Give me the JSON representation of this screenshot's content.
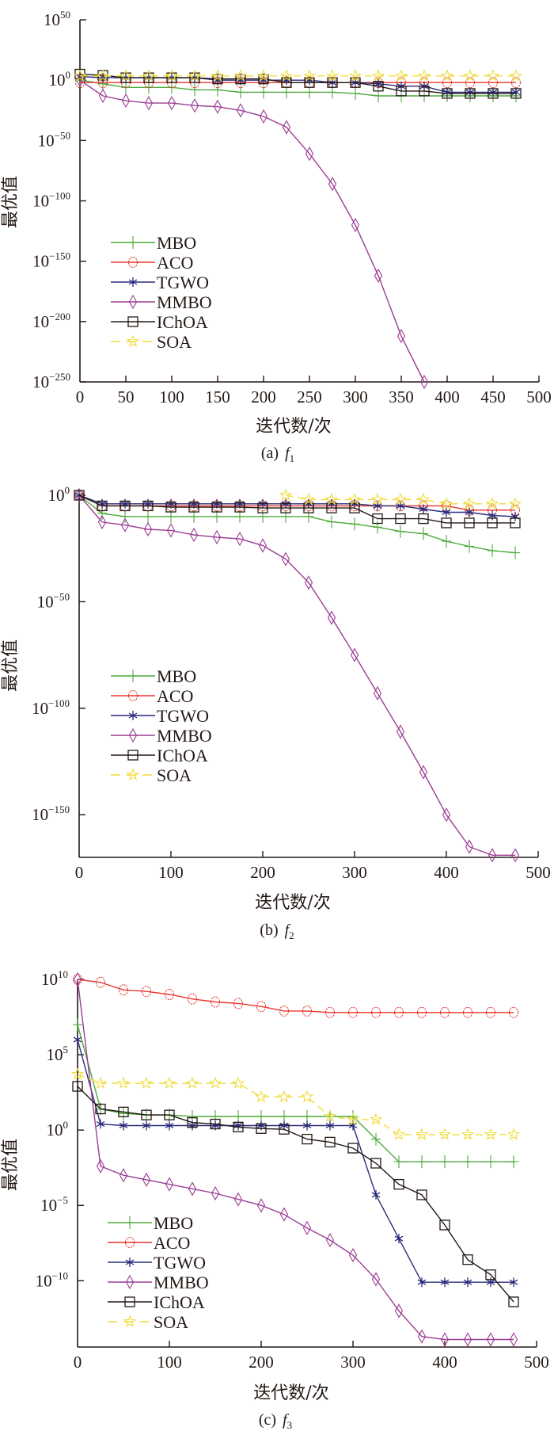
{
  "figure": {
    "series_styles": [
      {
        "name": "MBO",
        "color": "#4daa3a",
        "marker": "plus",
        "dash": "solid"
      },
      {
        "name": "ACO",
        "color": "#e8362e",
        "marker": "circle",
        "dash": "solid"
      },
      {
        "name": "TGWO",
        "color": "#2c2d7c",
        "marker": "star6",
        "dash": "solid"
      },
      {
        "name": "MMBO",
        "color": "#9b3d94",
        "marker": "diamond",
        "dash": "solid"
      },
      {
        "name": "IChOA",
        "color": "#231815",
        "marker": "square",
        "dash": "solid"
      },
      {
        "name": "SOA",
        "color": "#f0dc3c",
        "marker": "pentagram",
        "dash": "dashed"
      }
    ]
  },
  "chart_data": [
    {
      "type": "line",
      "panel": "a",
      "caption_prefix": "(a)",
      "caption_func": "f",
      "caption_sub": "1",
      "xlabel": "迭代数/次",
      "ylabel": "最优值",
      "yscale": "log",
      "xlim": [
        0,
        500
      ],
      "ylim_log10": [
        -250,
        50
      ],
      "xticks": [
        0,
        50,
        100,
        150,
        200,
        250,
        300,
        350,
        400,
        450,
        500
      ],
      "yticks_log10": [
        50,
        0,
        -50,
        -100,
        -150,
        -200,
        -250
      ],
      "legend_position": "lower-left",
      "x": [
        0,
        25,
        50,
        75,
        100,
        125,
        150,
        175,
        200,
        225,
        250,
        275,
        300,
        325,
        350,
        375,
        400,
        425,
        450,
        475
      ],
      "series_log10": [
        {
          "name": "MBO",
          "values": [
            0,
            -3,
            -6,
            -6,
            -6,
            -8,
            -8,
            -10,
            -10,
            -10,
            -10,
            -10,
            -11,
            -13,
            -13,
            -13,
            -13,
            -13,
            -13,
            -13
          ]
        },
        {
          "name": "ACO",
          "values": [
            -2,
            -2,
            -2,
            -2,
            -2,
            -2,
            -2,
            -2,
            -2,
            -2,
            -2,
            -2,
            -2,
            -2,
            -2,
            -2,
            -2,
            -2,
            -2,
            -2
          ]
        },
        {
          "name": "TGWO",
          "values": [
            3,
            2,
            2,
            2,
            2,
            2,
            0,
            0,
            0,
            0,
            0,
            -2,
            -2,
            -3,
            -5,
            -5,
            -10,
            -10,
            -10,
            -10
          ]
        },
        {
          "name": "MMBO",
          "values": [
            0,
            -13,
            -17,
            -19,
            -19,
            -21,
            -22,
            -25,
            -30,
            -39,
            -61,
            -86,
            -120,
            -162,
            -212,
            -250
          ]
        },
        {
          "name": "IChOA",
          "values": [
            5,
            4,
            2,
            2,
            2,
            2,
            1,
            1,
            1,
            -2,
            -2,
            -2,
            -2,
            -5,
            -9,
            -9,
            -11,
            -11,
            -11,
            -11
          ]
        },
        {
          "name": "SOA",
          "values": [
            3.5,
            3.5,
            3.5,
            3.5,
            3.5,
            3.5,
            3.5,
            3.5,
            3.5,
            3.5,
            3.5,
            3.5,
            3.5,
            3.5,
            3.5,
            3.5,
            3.5,
            3.5,
            3.5,
            3.5
          ]
        }
      ]
    },
    {
      "type": "line",
      "panel": "b",
      "caption_prefix": "(b)",
      "caption_func": "f",
      "caption_sub": "2",
      "xlabel": "迭代数/次",
      "ylabel": "最优值",
      "yscale": "log",
      "xlim": [
        0,
        500
      ],
      "ylim_log10": [
        -170,
        0
      ],
      "xticks": [
        0,
        100,
        200,
        300,
        400,
        500
      ],
      "yticks_log10": [
        0,
        -50,
        -100,
        -150
      ],
      "legend_position": "lower-left",
      "x": [
        0,
        25,
        50,
        75,
        100,
        125,
        150,
        175,
        200,
        225,
        250,
        275,
        300,
        325,
        350,
        375,
        400,
        425,
        450,
        475
      ],
      "series_log10": [
        {
          "name": "MBO",
          "values": [
            0,
            -8.5,
            -10,
            -10,
            -10,
            -10,
            -10,
            -10,
            -10,
            -10,
            -10,
            -12.5,
            -13.5,
            -15,
            -17,
            -18,
            -21.6,
            -24,
            -26,
            -27
          ]
        },
        {
          "name": "ACO",
          "values": [
            0,
            -5,
            -5,
            -5,
            -5,
            -5,
            -5,
            -5,
            -5,
            -5,
            -5,
            -5,
            -5,
            -5,
            -5,
            -5,
            -5,
            -7,
            -7,
            -7
          ]
        },
        {
          "name": "TGWO",
          "values": [
            0,
            -4,
            -4,
            -4,
            -4,
            -4,
            -4,
            -4,
            -4,
            -4,
            -4,
            -4,
            -4,
            -5,
            -5,
            -6.5,
            -8,
            -8,
            -9.5,
            -10
          ]
        },
        {
          "name": "MMBO",
          "values": [
            0,
            -12.6,
            -14,
            -16,
            -16.5,
            -18.6,
            -19.7,
            -20.5,
            -23.6,
            -30,
            -41,
            -57.5,
            -75,
            -93,
            -111,
            -130,
            -150,
            -165,
            -169,
            -169
          ]
        },
        {
          "name": "IChOA",
          "values": [
            0,
            -5,
            -5,
            -5,
            -5.6,
            -5.6,
            -5.6,
            -5.6,
            -6,
            -6,
            -6,
            -6,
            -6,
            -11,
            -11,
            -11,
            -13,
            -13,
            -13,
            -13
          ]
        },
        {
          "name": "SOA",
          "x_start": 225,
          "values": [
            0,
            -2,
            -2,
            -2,
            -2,
            -2,
            -2,
            -4,
            -4,
            -4,
            -4
          ]
        }
      ]
    },
    {
      "type": "line",
      "panel": "c",
      "caption_prefix": "(c)",
      "caption_func": "f",
      "caption_sub": "3",
      "xlabel": "迭代数/次",
      "ylabel": "最优值",
      "yscale": "log",
      "xlim": [
        0,
        500
      ],
      "ylim_log10": [
        -14.4,
        10
      ],
      "xticks": [
        0,
        100,
        200,
        300,
        400,
        500
      ],
      "yticks_log10": [
        10,
        5,
        0,
        -5,
        -10
      ],
      "legend_position": "lower-left",
      "x": [
        0,
        25,
        50,
        75,
        100,
        125,
        150,
        175,
        200,
        225,
        250,
        275,
        300,
        325,
        350,
        375,
        400,
        425,
        450,
        475
      ],
      "series_log10": [
        {
          "name": "MBO",
          "values": [
            7,
            1.4,
            1.1,
            1.0,
            1.0,
            0.9,
            0.9,
            0.9,
            0.9,
            0.9,
            0.9,
            0.9,
            0.9,
            -0.6,
            -2.1,
            -2.1,
            -2.1,
            -2.1,
            -2.1,
            -2.1
          ]
        },
        {
          "name": "ACO",
          "values": [
            10,
            9.8,
            9.3,
            9.2,
            9.0,
            8.7,
            8.5,
            8.4,
            8.2,
            7.9,
            7.9,
            7.8,
            7.8,
            7.8,
            7.8,
            7.8,
            7.8,
            7.8,
            7.8,
            7.8
          ]
        },
        {
          "name": "TGWO",
          "values": [
            6,
            0.4,
            0.3,
            0.3,
            0.3,
            0.3,
            0.3,
            0.3,
            0.3,
            0.3,
            0.3,
            0.3,
            0.3,
            -4.3,
            -7.2,
            -10.1,
            -10.1,
            -10.1,
            -10.1,
            -10.1
          ]
        },
        {
          "name": "MMBO",
          "values": [
            10,
            -2.4,
            -3.0,
            -3.3,
            -3.6,
            -3.9,
            -4.2,
            -4.6,
            -5.0,
            -5.6,
            -6.5,
            -7.3,
            -8.3,
            -9.9,
            -12,
            -13.7,
            -13.9,
            -13.9,
            -13.9,
            -13.9
          ]
        },
        {
          "name": "IChOA",
          "values": [
            2.9,
            1.4,
            1.2,
            1.0,
            1.0,
            0.5,
            0.4,
            0.2,
            0.1,
            0.05,
            -0.6,
            -0.8,
            -1.2,
            -2.2,
            -3.6,
            -4.3,
            -6.3,
            -8.6,
            -9.6,
            -11.4
          ]
        },
        {
          "name": "SOA",
          "values": [
            3.7,
            3.1,
            3.1,
            3.1,
            3.1,
            3.1,
            3.1,
            3.1,
            2.2,
            2.2,
            2.2,
            0.9,
            0.7,
            0.7,
            -0.3,
            -0.3,
            -0.3,
            -0.3,
            -0.3,
            -0.3
          ]
        }
      ]
    }
  ]
}
